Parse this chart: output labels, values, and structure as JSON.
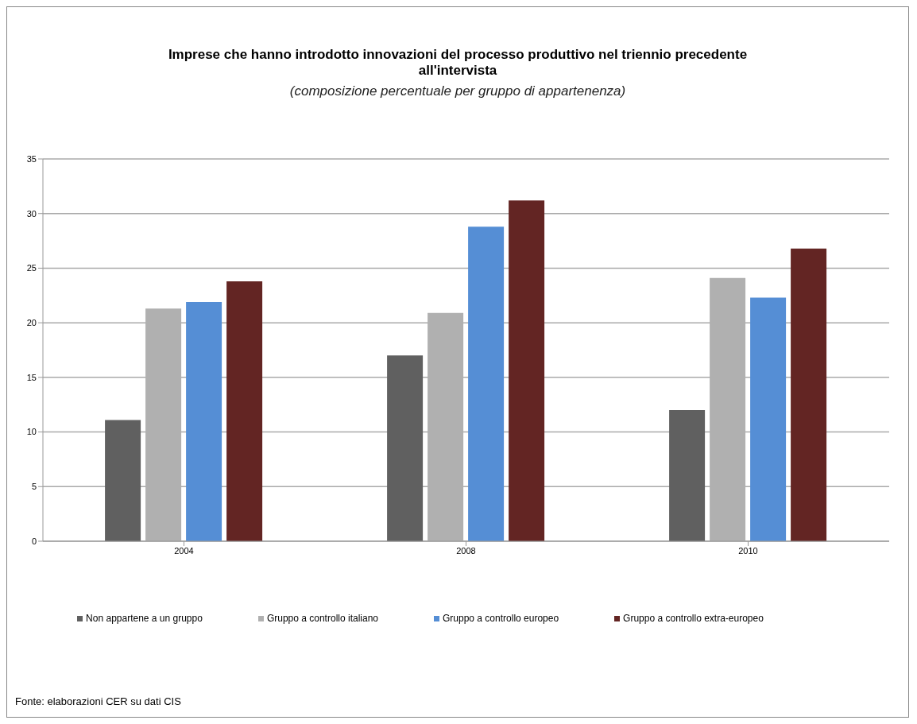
{
  "chart_data": {
    "type": "bar",
    "title": "Imprese che hanno introdotto innovazioni del processo produttivo nel triennio precedente all'intervista",
    "subtitle": "(composizione percentuale per gruppo di appartenenza)",
    "categories": [
      "2004",
      "2008",
      "2010"
    ],
    "series": [
      {
        "name": "Non appartene a un gruppo",
        "color": "#606060",
        "values": [
          11.1,
          17.0,
          12.0
        ]
      },
      {
        "name": "Gruppo a controllo italiano",
        "color": "#b0b0b0",
        "values": [
          21.3,
          20.9,
          24.1
        ]
      },
      {
        "name": "Gruppo a controllo europeo",
        "color": "#558ed5",
        "values": [
          21.9,
          28.8,
          22.3
        ]
      },
      {
        "name": "Gruppo a controllo extra-europeo",
        "color": "#632523",
        "values": [
          23.8,
          31.2,
          26.8
        ]
      }
    ],
    "ylim": [
      0,
      35
    ],
    "yticks": [
      0,
      5,
      10,
      15,
      20,
      25,
      30,
      35
    ],
    "grid": "y",
    "legend": "bottom",
    "annotations": [
      "Fonte: elaborazioni CER su dati CIS"
    ]
  }
}
